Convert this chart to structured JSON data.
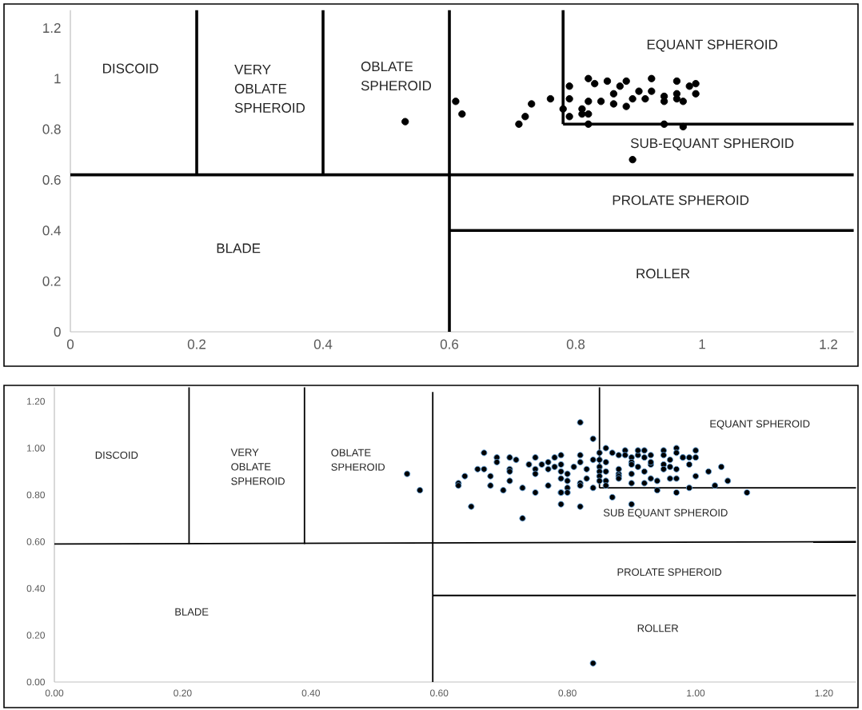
{
  "chart_data": [
    {
      "type": "scatter",
      "xlim": [
        0,
        1.24
      ],
      "ylim": [
        0,
        1.27
      ],
      "xticks": [
        0,
        0.2,
        0.4,
        0.6,
        0.8,
        1,
        1.2
      ],
      "yticks": [
        0,
        0.2,
        0.4,
        0.6,
        0.8,
        1,
        1.2
      ],
      "grid": false,
      "series": [
        {
          "marker": "circle",
          "color": "#000000",
          "x": [
            0.53,
            0.61,
            0.62,
            0.71,
            0.72,
            0.73,
            0.76,
            0.79,
            0.79,
            0.79,
            0.78,
            0.82,
            0.83,
            0.85,
            0.87,
            0.88,
            0.92,
            0.96,
            0.99,
            0.98,
            0.86,
            0.9,
            0.92,
            0.96,
            0.99,
            0.82,
            0.84,
            0.86,
            0.88,
            0.89,
            0.91,
            0.94,
            0.94,
            0.96,
            0.81,
            0.81,
            0.82,
            0.82,
            0.94,
            0.97,
            0.89,
            0.97
          ],
          "values": [
            0.83,
            0.91,
            0.86,
            0.82,
            0.85,
            0.9,
            0.92,
            0.97,
            0.92,
            0.85,
            0.88,
            1.0,
            0.98,
            0.99,
            0.97,
            0.99,
            1.0,
            0.99,
            0.98,
            0.97,
            0.94,
            0.95,
            0.95,
            0.94,
            0.94,
            0.91,
            0.91,
            0.9,
            0.89,
            0.92,
            0.92,
            0.93,
            0.91,
            0.92,
            0.88,
            0.86,
            0.86,
            0.82,
            0.82,
            0.81,
            0.68,
            0.91
          ]
        },
        {
          "type": "line",
          "color": "#000000",
          "x": [
            0,
            1.24
          ],
          "values": [
            0.62,
            0.62
          ]
        },
        {
          "type": "line",
          "color": "#000000",
          "x": [
            0.2,
            0.2
          ],
          "values": [
            0.62,
            1.27
          ]
        },
        {
          "type": "line",
          "color": "#000000",
          "x": [
            0.4,
            0.4
          ],
          "values": [
            0.62,
            1.27
          ]
        },
        {
          "type": "line",
          "color": "#000000",
          "x": [
            0.6,
            0.6
          ],
          "values": [
            0,
            1.27
          ]
        },
        {
          "type": "line",
          "color": "#000000",
          "x": [
            0.6,
            1.24
          ],
          "values": [
            0.4,
            0.4
          ]
        },
        {
          "type": "line",
          "color": "#000000",
          "x": [
            0.78,
            0.78
          ],
          "values": [
            0.82,
            1.27
          ]
        },
        {
          "type": "line",
          "color": "#000000",
          "x": [
            0.78,
            1.24
          ],
          "values": [
            0.82,
            0.82
          ]
        }
      ],
      "annotations": [
        "DISCOID",
        "VERY OBLATE SPHEROID",
        "OBLATE SPHEROID",
        "EQUANT SPHEROID",
        "SUB-EQUANT SPHEROID",
        "PROLATE SPHEROID",
        "BLADE",
        "ROLLER"
      ]
    },
    {
      "type": "scatter",
      "xlim": [
        0,
        1.25
      ],
      "ylim": [
        0,
        1.26
      ],
      "grid": false,
      "xticks": [
        {
          "value": 0,
          "label": "0.00"
        },
        {
          "value": 0.2,
          "label": "0.20"
        },
        {
          "value": 0.4,
          "label": "0.40"
        },
        {
          "value": 0.6,
          "label": "0.60"
        },
        {
          "value": 0.8,
          "label": "0.80"
        },
        {
          "value": 1,
          "label": "1.00"
        },
        {
          "value": 1.2,
          "label": "1.20"
        }
      ],
      "yticks": [
        {
          "value": 0,
          "label": "0.00"
        },
        {
          "value": 0.2,
          "label": "0.20"
        },
        {
          "value": 0.4,
          "label": "0.40"
        },
        {
          "value": 0.6,
          "label": "0.60"
        },
        {
          "value": 0.8,
          "label": "0.80"
        },
        {
          "value": 1,
          "label": "1.00"
        },
        {
          "value": 1.2,
          "label": "1.20"
        }
      ],
      "series": [
        {
          "marker": "circle",
          "color": "#000000",
          "x": [
            0.55,
            0.57,
            0.67,
            0.69,
            0.71,
            0.72,
            0.69,
            0.66,
            0.67,
            0.71,
            0.71,
            0.64,
            0.68,
            0.63,
            0.63,
            0.68,
            0.71,
            0.7,
            0.73,
            0.65,
            0.73,
            0.75,
            0.74,
            0.75,
            0.76,
            0.77,
            0.78,
            0.75,
            0.77,
            0.78,
            0.77,
            0.75,
            0.79,
            0.79,
            0.82,
            0.84,
            0.86,
            0.85,
            0.87,
            0.88,
            0.84,
            0.85,
            0.85,
            0.86,
            0.85,
            0.86,
            0.85,
            0.85,
            0.86,
            0.86,
            0.84,
            0.87,
            0.9,
            0.82,
            0.82,
            0.83,
            0.83,
            0.82,
            0.82,
            0.8,
            0.8,
            0.79,
            0.82,
            0.81,
            0.79,
            0.79,
            0.79,
            0.8,
            0.79,
            0.8,
            0.88,
            0.88,
            0.88,
            0.88,
            0.9,
            0.89,
            0.89,
            0.9,
            0.91,
            0.91,
            0.92,
            0.9,
            0.92,
            0.93,
            0.91,
            0.93,
            0.92,
            0.9,
            0.93,
            0.9,
            0.92,
            0.93,
            0.94,
            0.94,
            0.95,
            0.97,
            0.95,
            0.96,
            0.97,
            0.98,
            0.95,
            0.96,
            0.97,
            0.95,
            0.96,
            0.97,
            0.97,
            0.98,
            0.99,
            0.99,
            1.0,
            1.0,
            0.99,
            1.0,
            1.02,
            1.04,
            1.05,
            1.03,
            1.08,
            0.84
          ],
          "values": [
            0.89,
            0.82,
            0.98,
            0.96,
            0.96,
            0.95,
            0.94,
            0.91,
            0.91,
            0.91,
            0.9,
            0.88,
            0.88,
            0.85,
            0.84,
            0.84,
            0.86,
            0.82,
            0.83,
            0.75,
            0.7,
            0.96,
            0.93,
            0.91,
            0.93,
            0.94,
            0.96,
            0.89,
            0.91,
            0.92,
            0.84,
            0.81,
            0.81,
            0.76,
            1.11,
            1.04,
            1.0,
            0.98,
            0.98,
            0.97,
            0.95,
            0.95,
            0.92,
            0.94,
            0.9,
            0.9,
            0.88,
            0.86,
            0.86,
            0.84,
            0.83,
            0.79,
            0.76,
            0.97,
            0.94,
            0.91,
            0.87,
            0.85,
            0.84,
            0.83,
            0.81,
            0.81,
            0.75,
            0.92,
            0.93,
            0.97,
            0.9,
            0.89,
            0.87,
            0.86,
            0.89,
            0.91,
            0.88,
            0.87,
            0.89,
            0.99,
            0.97,
            0.96,
            0.97,
            0.99,
            0.99,
            0.94,
            0.96,
            0.97,
            0.92,
            0.93,
            0.9,
            0.93,
            0.94,
            0.85,
            0.85,
            0.87,
            0.86,
            0.82,
            0.99,
            1.0,
            0.97,
            0.95,
            0.98,
            0.96,
            0.93,
            0.92,
            0.91,
            0.91,
            0.87,
            0.87,
            0.81,
            0.96,
            0.93,
            0.96,
            0.99,
            0.96,
            0.83,
            0.88,
            0.9,
            0.92,
            0.86,
            0.84,
            0.81,
            0.08
          ]
        },
        {
          "type": "line",
          "color": "#000000",
          "x": [
            0,
            1.25
          ],
          "values": [
            0.59,
            0.6
          ]
        },
        {
          "type": "line",
          "color": "#000000",
          "x": [
            0.21,
            0.21
          ],
          "values": [
            0.59,
            1.26
          ]
        },
        {
          "type": "line",
          "color": "#000000",
          "x": [
            0.39,
            0.39
          ],
          "values": [
            0.59,
            1.26
          ]
        },
        {
          "type": "line",
          "color": "#000000",
          "x": [
            0.59,
            0.59
          ],
          "values": [
            0,
            1.24
          ]
        },
        {
          "type": "line",
          "color": "#000000",
          "x": [
            0.59,
            1.25
          ],
          "values": [
            0.37,
            0.37
          ]
        },
        {
          "type": "line",
          "color": "#000000",
          "x": [
            0.85,
            0.85
          ],
          "values": [
            0.83,
            1.26
          ]
        },
        {
          "type": "line",
          "color": "#000000",
          "x": [
            0.85,
            1.25
          ],
          "values": [
            0.83,
            0.83
          ]
        }
      ],
      "annotations": [
        "DISCOID",
        "VERY OBLATE SPHEROID",
        "OBLATE SPHEROID",
        "EQUANT SPHEROID",
        "SUB EQUANT SPHEROID",
        "PROLATE SPHEROID",
        "BLADE",
        "ROLLER"
      ]
    }
  ]
}
